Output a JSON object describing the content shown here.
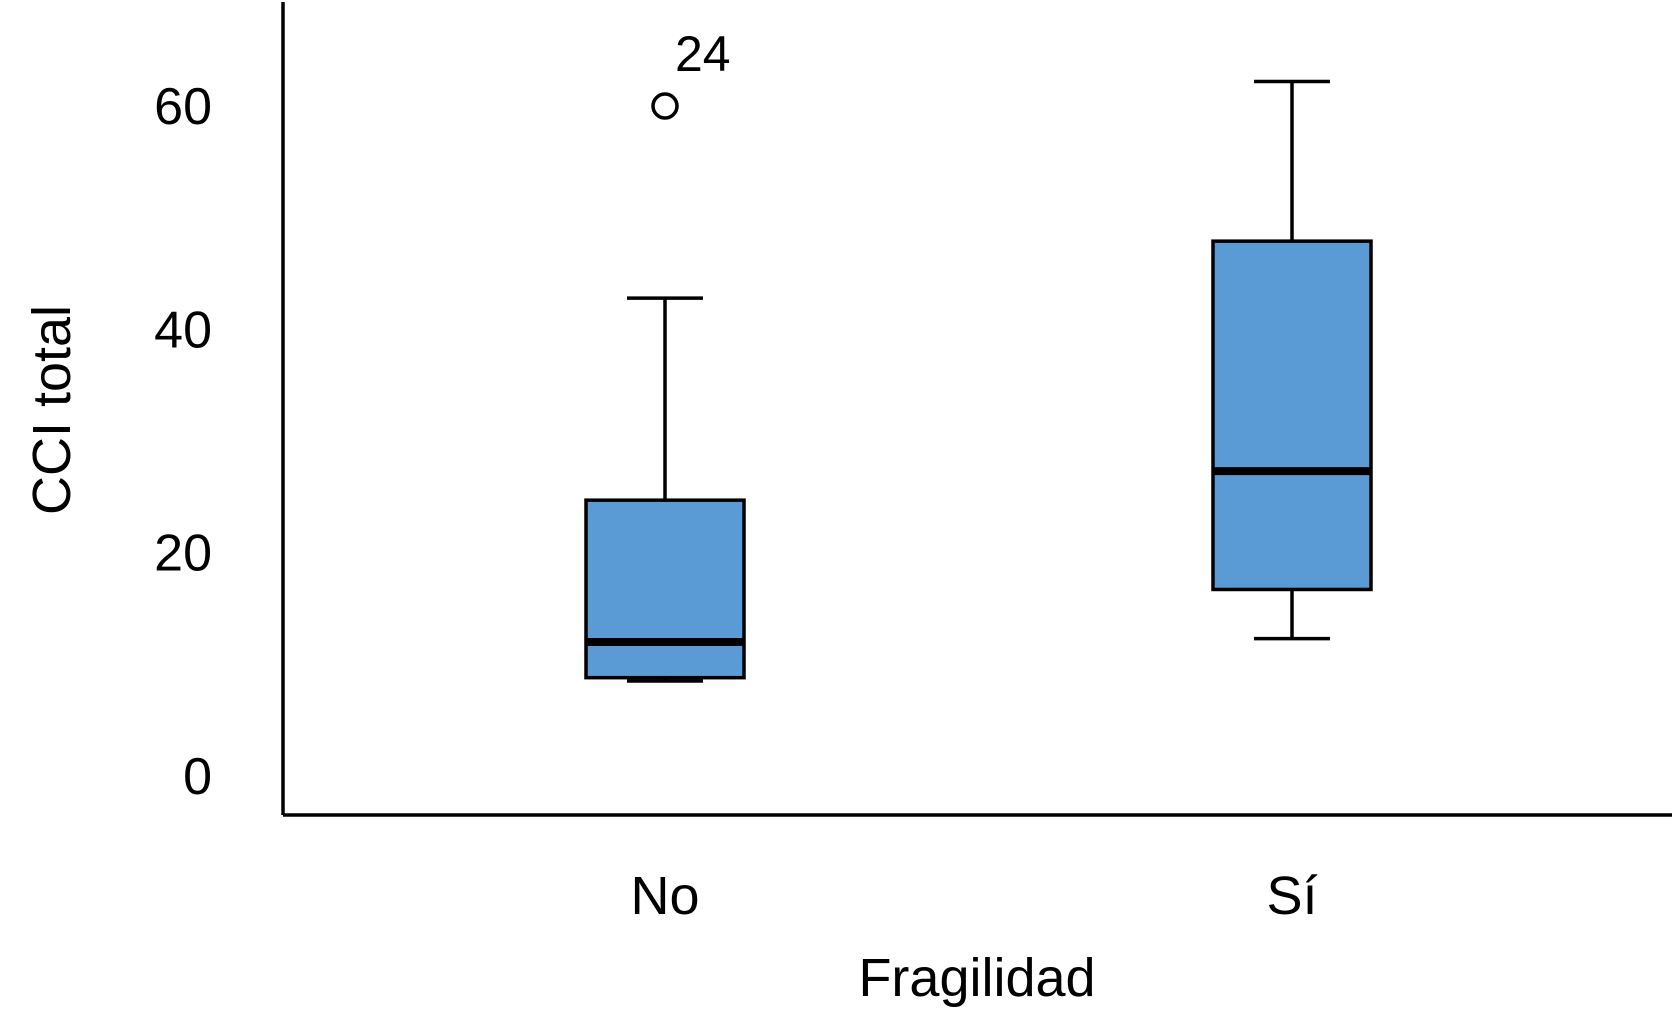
{
  "chart_data": {
    "type": "box",
    "title": "",
    "xlabel": "Fragilidad",
    "ylabel": "CCI total",
    "ylim": [
      -3.5,
      69.5
    ],
    "yticks": [
      0,
      20,
      40,
      60
    ],
    "ytick_labels": [
      "0",
      "20",
      "40",
      "60"
    ],
    "grid": false,
    "legend": "none",
    "box_color": "#5b9bd5",
    "categories": [
      "No",
      "Sí"
    ],
    "boxes": [
      {
        "category": "No",
        "whisker_low": 8.5,
        "q1": 8.8,
        "median": 12.0,
        "q3": 24.7,
        "whisker_high": 42.8,
        "outliers": [
          {
            "value": 60.0,
            "label": "24"
          }
        ]
      },
      {
        "category": "Sí",
        "whisker_low": 12.3,
        "q1": 16.7,
        "median": 27.3,
        "q3": 47.9,
        "whisker_high": 62.2,
        "outliers": []
      }
    ]
  }
}
